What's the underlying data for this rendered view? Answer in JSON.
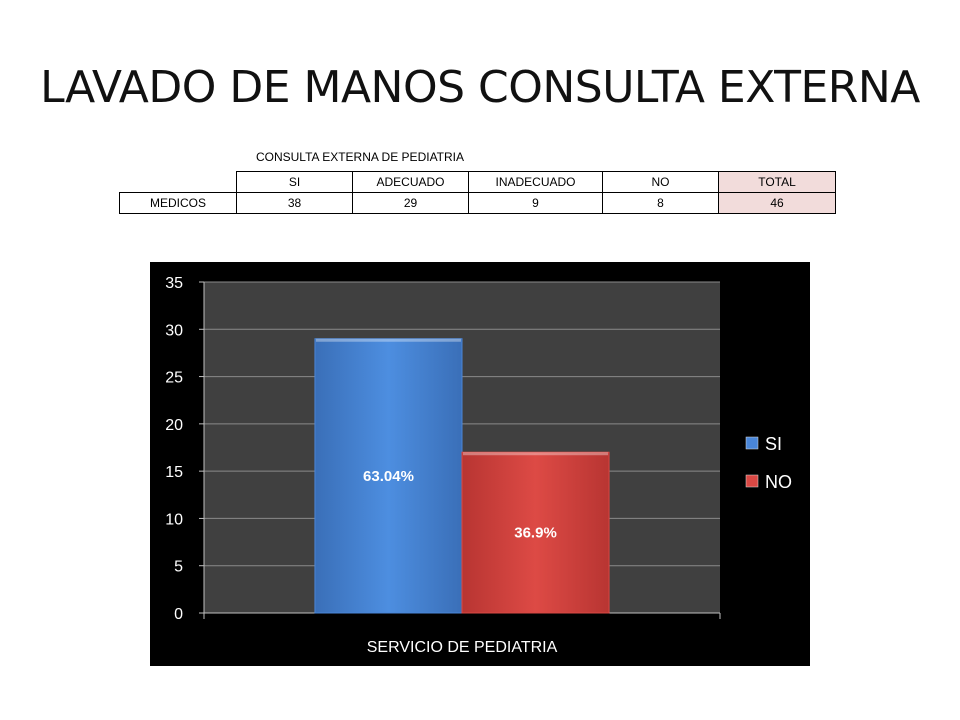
{
  "title": "LAVADO DE MANOS CONSULTA EXTERNA",
  "table": {
    "caption": "CONSULTA EXTERNA DE PEDIATRIA",
    "headers": [
      "",
      "SI",
      "ADECUADO",
      "INADECUADO",
      "NO",
      "TOTAL"
    ],
    "rows": [
      [
        "MEDICOS",
        "38",
        "29",
        "9",
        "8",
        "46"
      ]
    ]
  },
  "chart_data": {
    "type": "bar",
    "categories": [
      "SERVICIO DE PEDIATRIA"
    ],
    "series": [
      {
        "name": "SI",
        "values": [
          29
        ],
        "label": "63.04%",
        "color": "#4a86d8"
      },
      {
        "name": "NO",
        "values": [
          17
        ],
        "label": "36.9%",
        "color": "#d94844"
      }
    ],
    "ylim": [
      0,
      35
    ],
    "yticks": [
      0,
      5,
      10,
      15,
      20,
      25,
      30,
      35
    ],
    "grid": true,
    "legend": "right",
    "background": "#404040"
  }
}
